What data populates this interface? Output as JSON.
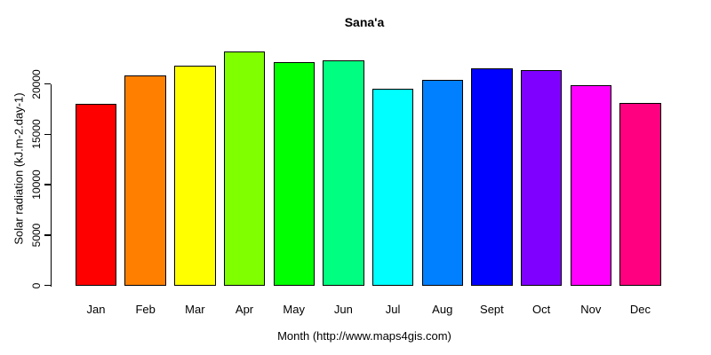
{
  "title": "Sana'a",
  "chart_data": {
    "type": "bar",
    "title": "Sana'a",
    "xlabel": "Month (http://www.maps4gis.com)",
    "ylabel": "Solar radiation (kJ.m-2.day-1)",
    "categories": [
      "Jan",
      "Feb",
      "Mar",
      "Apr",
      "May",
      "Jun",
      "Jul",
      "Aug",
      "Sept",
      "Oct",
      "Nov",
      "Dec"
    ],
    "values": [
      18000,
      20800,
      21800,
      23200,
      22200,
      22300,
      19500,
      20400,
      21500,
      21400,
      19900,
      18100
    ],
    "bar_colors": [
      "#FF0000",
      "#FF8000",
      "#FFFF00",
      "#80FF00",
      "#00FF00",
      "#00FF80",
      "#00FFFF",
      "#0080FF",
      "#0000FF",
      "#8000FF",
      "#FF00FF",
      "#FF0080"
    ],
    "bar_border_color": "#000000",
    "yticks": [
      0,
      5000,
      10000,
      15000,
      20000
    ],
    "ytick_labels": [
      "0",
      "5000",
      "10000",
      "15000",
      "20000"
    ],
    "ylim": [
      0,
      23200
    ],
    "grid": false,
    "legend": "none",
    "background": "#FFFFFF"
  }
}
